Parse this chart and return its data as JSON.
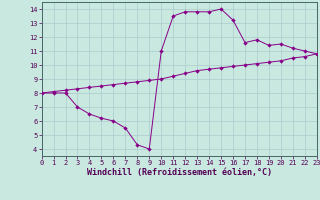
{
  "x": [
    0,
    1,
    2,
    3,
    4,
    5,
    6,
    7,
    8,
    9,
    10,
    11,
    12,
    13,
    14,
    15,
    16,
    17,
    18,
    19,
    20,
    21,
    22,
    23
  ],
  "y_main": [
    8.0,
    8.0,
    8.0,
    7.0,
    6.5,
    6.2,
    6.0,
    5.5,
    4.3,
    4.0,
    11.0,
    13.5,
    13.8,
    13.8,
    13.8,
    14.0,
    13.2,
    11.6,
    11.8,
    11.4,
    11.5,
    11.2,
    11.0,
    10.8
  ],
  "y_diag": [
    8.0,
    8.1,
    8.2,
    8.3,
    8.4,
    8.5,
    8.6,
    8.7,
    8.8,
    8.9,
    9.0,
    9.2,
    9.4,
    9.6,
    9.7,
    9.8,
    9.9,
    10.0,
    10.1,
    10.2,
    10.3,
    10.5,
    10.6,
    10.8
  ],
  "line_color": "#880088",
  "marker": "D",
  "marker_size": 2.2,
  "xlabel": "Windchill (Refroidissement éolien,°C)",
  "xlim": [
    0,
    23
  ],
  "ylim": [
    3.5,
    14.5
  ],
  "yticks": [
    4,
    5,
    6,
    7,
    8,
    9,
    10,
    11,
    12,
    13,
    14
  ],
  "xticks": [
    0,
    1,
    2,
    3,
    4,
    5,
    6,
    7,
    8,
    9,
    10,
    11,
    12,
    13,
    14,
    15,
    16,
    17,
    18,
    19,
    20,
    21,
    22,
    23
  ],
  "bg_color": "#c8e8e0",
  "grid_color": "#aacccc",
  "tick_fontsize": 5.0,
  "xlabel_fontsize": 6.0
}
